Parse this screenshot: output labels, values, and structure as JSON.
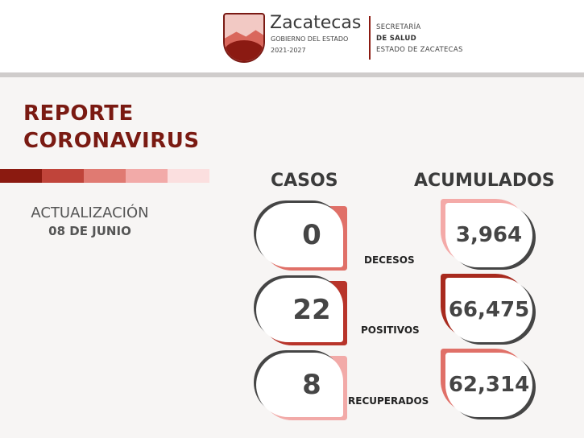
{
  "header": {
    "logo_title": "Zacatecas",
    "logo_subtitle": "GOBIERNO DEL ESTADO",
    "logo_years": "2021-2027",
    "secretaria": [
      "SECRETARÍA",
      "DE SALUD",
      "ESTADO DE ZACATECAS"
    ]
  },
  "title": [
    "REPORTE",
    "CORONAVIRUS"
  ],
  "stripe_colors": [
    "#8b1a10",
    "#c0443a",
    "#e07a72",
    "#f2aaa8",
    "#fbdfdf"
  ],
  "update_label": "ACTUALIZACIÓN",
  "update_date": "08 DE JUNIO",
  "columns": {
    "cases": "CASOS",
    "accumulated": "ACUMULADOS"
  },
  "rows": [
    {
      "label": "DECESOS",
      "cases": "0",
      "accumulated": "3,964",
      "case_color": "#e07068",
      "acc_color": "#f4aaa8"
    },
    {
      "label": "POSITIVOS",
      "cases": "22",
      "accumulated": "66,475",
      "case_color": "#b8342a",
      "acc_color": "#a82a1e"
    },
    {
      "label": "RECUPERADOS",
      "cases": "8",
      "accumulated": "62,314",
      "case_color": "#f2aaa8",
      "acc_color": "#e07068"
    }
  ]
}
